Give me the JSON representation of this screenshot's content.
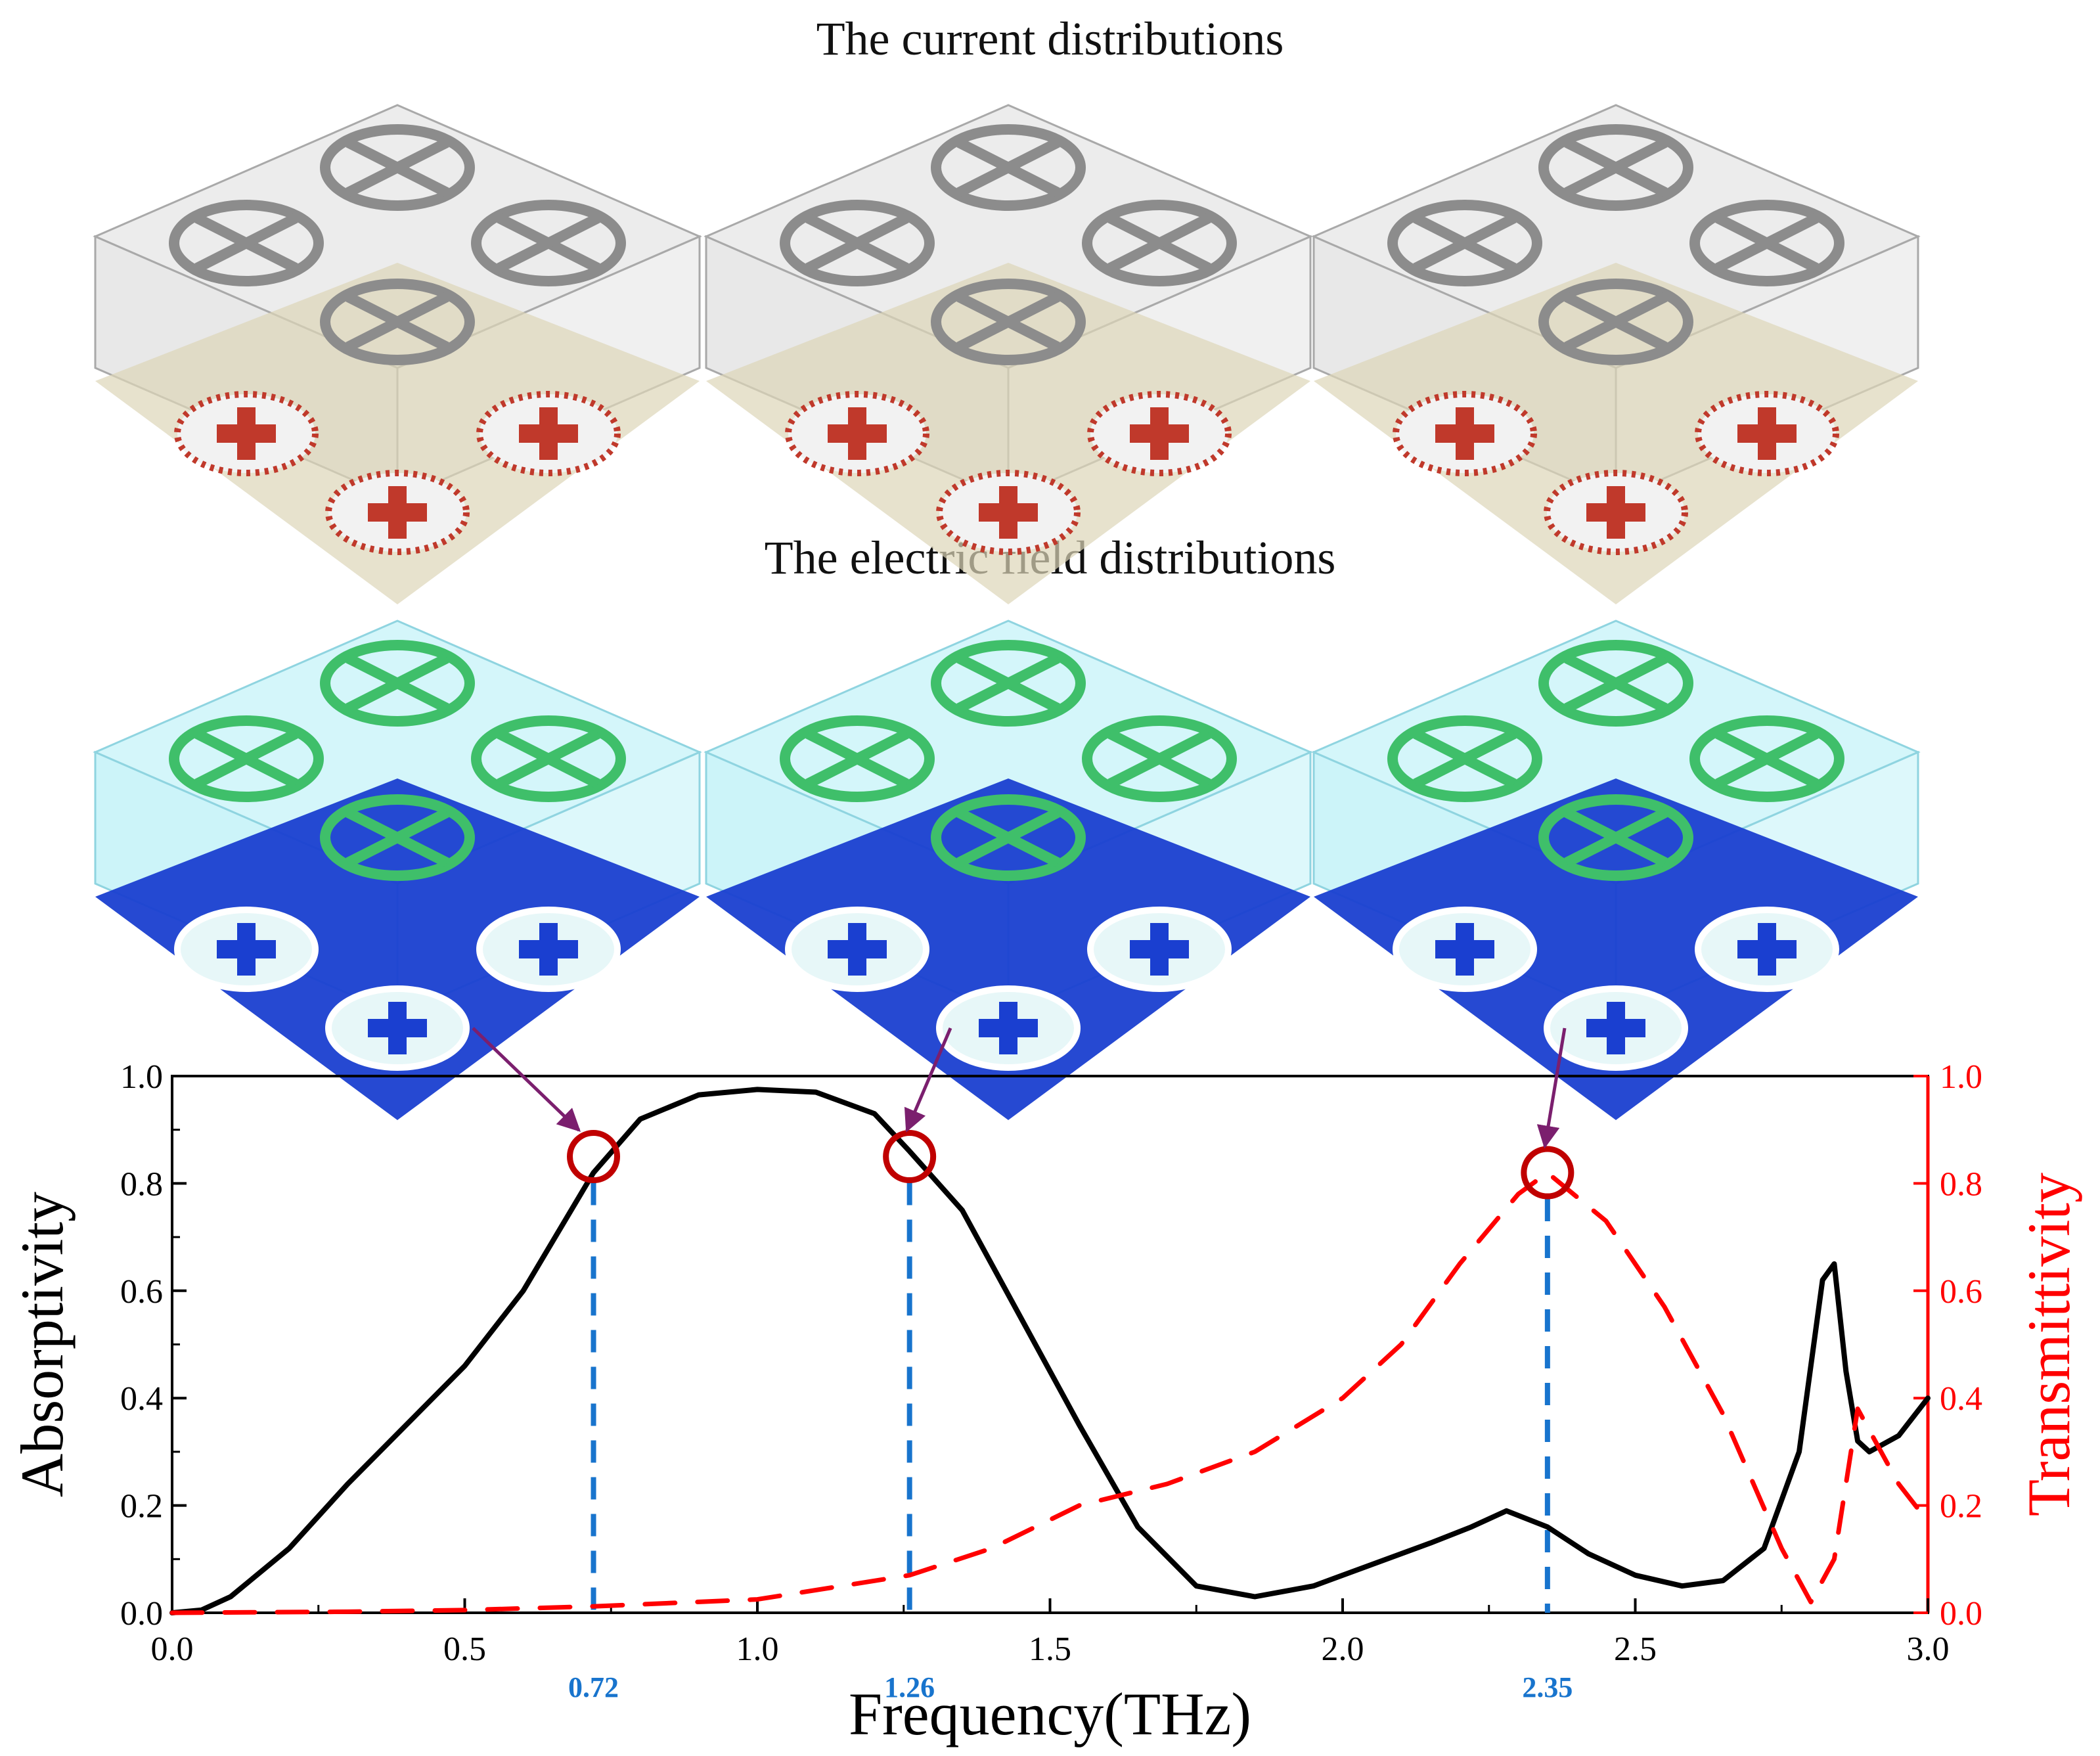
{
  "figure": {
    "top_title": "The current distributions",
    "mid_title": "The electric field distributions",
    "current_panels": [
      {
        "id": "current-0.72",
        "frequency": 0.72
      },
      {
        "id": "current-1.26",
        "frequency": 1.26
      },
      {
        "id": "current-2.35",
        "frequency": 2.35
      }
    ],
    "field_panels": [
      {
        "id": "field-0.72",
        "frequency": 0.72
      },
      {
        "id": "field-1.26",
        "frequency": 1.26
      },
      {
        "id": "field-2.35",
        "frequency": 2.35
      }
    ]
  },
  "chart_data": {
    "type": "line",
    "xlabel": "Frequency(THz)",
    "ylabel_left": "Absorptivity",
    "ylabel_right": "Transmittivity",
    "xlim": [
      0.0,
      3.0
    ],
    "ylim_left": [
      0.0,
      1.0
    ],
    "ylim_right": [
      0.0,
      1.0
    ],
    "x_ticks": [
      "0.0",
      "0.5",
      "1.0",
      "1.5",
      "2.0",
      "2.5",
      "3.0"
    ],
    "y_ticks": [
      "0.0",
      "0.2",
      "0.4",
      "0.6",
      "0.8",
      "1.0"
    ],
    "series": [
      {
        "name": "Absorptivity",
        "axis": "left",
        "color": "#000000",
        "style": "solid",
        "points": [
          [
            0,
            0
          ],
          [
            0.05,
            0.005
          ],
          [
            0.1,
            0.03
          ],
          [
            0.2,
            0.12
          ],
          [
            0.3,
            0.24
          ],
          [
            0.4,
            0.35
          ],
          [
            0.5,
            0.46
          ],
          [
            0.6,
            0.6
          ],
          [
            0.72,
            0.82
          ],
          [
            0.8,
            0.92
          ],
          [
            0.9,
            0.965
          ],
          [
            1.0,
            0.975
          ],
          [
            1.1,
            0.97
          ],
          [
            1.2,
            0.93
          ],
          [
            1.26,
            0.86
          ],
          [
            1.35,
            0.75
          ],
          [
            1.45,
            0.55
          ],
          [
            1.55,
            0.35
          ],
          [
            1.65,
            0.16
          ],
          [
            1.75,
            0.05
          ],
          [
            1.85,
            0.03
          ],
          [
            1.95,
            0.05
          ],
          [
            2.05,
            0.09
          ],
          [
            2.15,
            0.13
          ],
          [
            2.22,
            0.16
          ],
          [
            2.28,
            0.19
          ],
          [
            2.35,
            0.16
          ],
          [
            2.42,
            0.11
          ],
          [
            2.5,
            0.07
          ],
          [
            2.58,
            0.05
          ],
          [
            2.65,
            0.06
          ],
          [
            2.72,
            0.12
          ],
          [
            2.78,
            0.3
          ],
          [
            2.82,
            0.62
          ],
          [
            2.84,
            0.65
          ],
          [
            2.86,
            0.45
          ],
          [
            2.88,
            0.32
          ],
          [
            2.9,
            0.3
          ],
          [
            2.95,
            0.33
          ],
          [
            3.0,
            0.4
          ]
        ]
      },
      {
        "name": "Transmittivity",
        "axis": "right",
        "color": "#ff0000",
        "style": "dashed",
        "points": [
          [
            0,
            0
          ],
          [
            0.3,
            0.002
          ],
          [
            0.5,
            0.005
          ],
          [
            0.72,
            0.012
          ],
          [
            1.0,
            0.025
          ],
          [
            1.26,
            0.07
          ],
          [
            1.4,
            0.12
          ],
          [
            1.55,
            0.2
          ],
          [
            1.7,
            0.24
          ],
          [
            1.85,
            0.3
          ],
          [
            2.0,
            0.4
          ],
          [
            2.1,
            0.5
          ],
          [
            2.2,
            0.65
          ],
          [
            2.3,
            0.78
          ],
          [
            2.35,
            0.82
          ],
          [
            2.45,
            0.73
          ],
          [
            2.55,
            0.57
          ],
          [
            2.65,
            0.37
          ],
          [
            2.75,
            0.12
          ],
          [
            2.8,
            0.02
          ],
          [
            2.84,
            0.1
          ],
          [
            2.88,
            0.38
          ],
          [
            2.9,
            0.34
          ],
          [
            2.95,
            0.24
          ],
          [
            3.0,
            0.17
          ]
        ]
      }
    ],
    "markers": [
      {
        "x": 0.72,
        "label": "0.72",
        "circle_y": 0.85
      },
      {
        "x": 1.26,
        "label": "1.26",
        "circle_y": 0.85
      },
      {
        "x": 2.35,
        "label": "2.35",
        "circle_y": 0.82
      }
    ],
    "colors": {
      "right_axis": "#ff0000",
      "marker_line": "#1874cd",
      "circle": "#c00000",
      "arrow": "#7b1f6e"
    }
  }
}
